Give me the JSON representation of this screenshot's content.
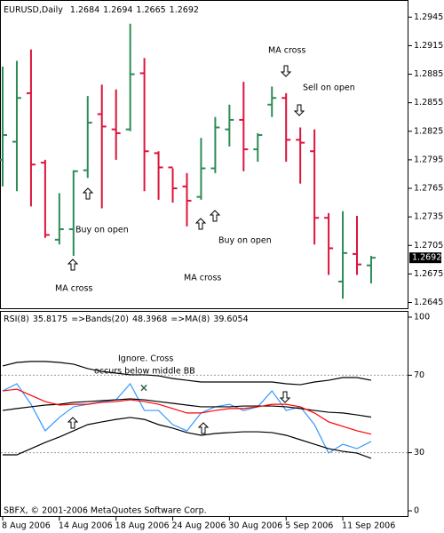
{
  "chart_data": [
    {
      "type": "ohlc",
      "title": "EURUSD,Daily",
      "categories": [
        "8 Aug 2006",
        null,
        null,
        null,
        "14 Aug 2006",
        null,
        null,
        null,
        "18 Aug 2006",
        null,
        null,
        null,
        "24 Aug 2006",
        null,
        null,
        null,
        "30 Aug 2006",
        null,
        null,
        null,
        "5 Sep 2006",
        null,
        null,
        null,
        "11 Sep 2006",
        null,
        null
      ],
      "open": [
        1.2795,
        1.2814,
        1.2865,
        1.2792,
        1.2711,
        1.2722,
        1.2784,
        1.2843,
        1.2827,
        1.2827,
        1.2886,
        1.2802,
        1.2787,
        1.2767,
        1.2756,
        1.2786,
        1.2827,
        1.2837,
        1.2806,
        1.2853,
        1.286,
        1.2816,
        1.2804,
        1.2734,
        1.2667,
        1.2696,
        1.2684
      ],
      "high": [
        1.2893,
        1.2899,
        1.2911,
        1.2795,
        1.276,
        1.2784,
        1.2862,
        1.2874,
        1.2869,
        1.2938,
        1.2902,
        1.2804,
        1.2786,
        1.2781,
        1.2818,
        1.284,
        1.2853,
        1.2877,
        1.2823,
        1.2872,
        1.2865,
        1.2829,
        1.2827,
        1.2739,
        1.2741,
        1.2736,
        1.2694
      ],
      "low": [
        1.2767,
        1.2762,
        1.2746,
        1.2713,
        1.2706,
        1.2694,
        1.2776,
        1.2744,
        1.2795,
        1.2825,
        1.2762,
        1.2753,
        1.275,
        1.2725,
        1.2753,
        1.2781,
        1.2809,
        1.2783,
        1.2793,
        1.284,
        1.2793,
        1.277,
        1.2706,
        1.2674,
        1.2649,
        1.2674,
        1.2665
      ],
      "close": [
        1.2821,
        1.286,
        1.279,
        1.2716,
        1.2722,
        1.2783,
        1.2834,
        1.283,
        1.2823,
        1.2885,
        1.2804,
        1.2787,
        1.2765,
        1.2752,
        1.2786,
        1.2829,
        1.2837,
        1.2806,
        1.2821,
        1.286,
        1.2816,
        1.2813,
        1.2734,
        1.2702,
        1.2697,
        1.2685,
        1.2692
      ],
      "up_color": "#2e8b57",
      "down_color": "#dc143c",
      "ylim": [
        1.2638,
        1.2963
      ],
      "yticks": [
        1.2645,
        1.2675,
        1.2705,
        1.2735,
        1.2765,
        1.2795,
        1.2825,
        1.2855,
        1.2885,
        1.2915,
        1.2945
      ],
      "annotations": [
        "MA cross",
        "Buy on open",
        "MA cross",
        "Buy on open",
        "MA cross",
        "Sell on open"
      ]
    },
    {
      "type": "line",
      "series": [
        {
          "name": "RSI(8)",
          "color": "#3399ff",
          "values": [
            61.9,
            65.6,
            55.0,
            41.3,
            48.2,
            53.7,
            55.0,
            56.4,
            57.3,
            65.6,
            51.8,
            51.8,
            44.5,
            41.3,
            50.5,
            53.7,
            55.0,
            51.8,
            53.7,
            61.9,
            51.8,
            53.7,
            44.5,
            29.8,
            34.4,
            32.1,
            35.8175
          ]
        },
        {
          "name": "=>Bands(20)",
          "color": "#000000",
          "values": [
            51.8,
            52.8,
            53.7,
            54.6,
            55.0,
            56.0,
            56.4,
            56.9,
            57.3,
            57.8,
            57.3,
            56.4,
            55.5,
            54.6,
            53.7,
            53.7,
            53.7,
            54.1,
            54.1,
            54.1,
            53.7,
            52.8,
            51.8,
            50.9,
            50.5,
            49.5,
            48.3968
          ]
        },
        {
          "name": "=>MA(8)",
          "color": "#ff0000",
          "values": [
            61.9,
            62.8,
            59.6,
            56.4,
            54.6,
            55.0,
            55.0,
            56.0,
            56.4,
            57.3,
            56.4,
            55.0,
            52.8,
            50.5,
            50.5,
            51.8,
            52.8,
            52.8,
            53.7,
            55.0,
            55.0,
            53.7,
            50.5,
            45.9,
            43.6,
            41.3,
            39.6054
          ]
        },
        {
          "color": "#000000",
          "values": [
            74.8,
            76.6,
            77.1,
            77.1,
            76.6,
            75.7,
            73.4,
            72.0,
            71.1,
            70.2,
            70.2,
            69.7,
            68.3,
            67.4,
            66.5,
            66.5,
            66.5,
            66.5,
            66.5,
            66.5,
            65.6,
            65.1,
            66.5,
            67.4,
            68.8,
            68.8,
            67.4
          ]
        },
        {
          "color": "#000000",
          "values": [
            28.9,
            28.9,
            32.1,
            35.3,
            38.1,
            41.3,
            44.5,
            45.9,
            47.2,
            48.2,
            47.2,
            44.5,
            42.7,
            40.4,
            39.0,
            39.9,
            40.4,
            40.8,
            40.8,
            40.4,
            39.0,
            36.7,
            34.4,
            32.1,
            30.7,
            29.8,
            27.1
          ]
        }
      ],
      "ylim": [
        -3.2,
        103.2
      ],
      "yticks": [
        0,
        30,
        70,
        100
      ],
      "levels": [
        70,
        30
      ],
      "annotations": [
        "Ignore. Cross",
        "occurs below middle BB"
      ],
      "footer": "SBFX, © 2001-2006 MetaQuotes Software Corp."
    }
  ]
}
